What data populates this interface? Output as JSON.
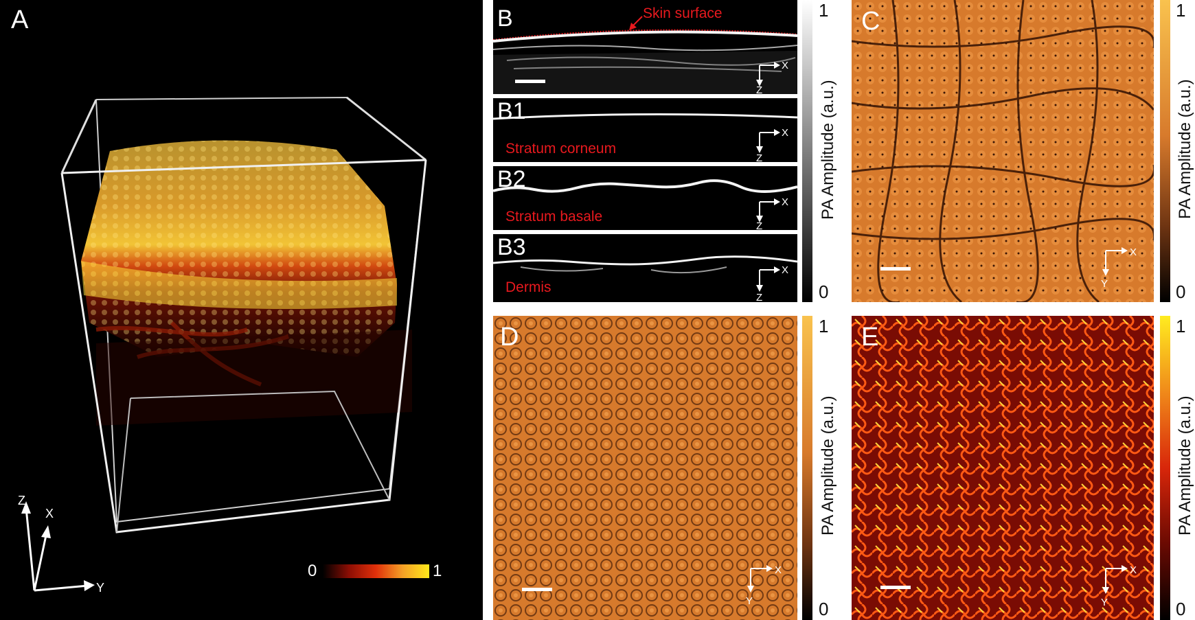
{
  "panels": {
    "A": {
      "label": "A",
      "colorbar_min": "0",
      "colorbar_max": "1",
      "axes": {
        "z": "Z",
        "x": "X",
        "y": "Y"
      }
    },
    "B": {
      "label": "B",
      "annotation": "Skin surface",
      "axes": {
        "x": "X",
        "z": "Z"
      }
    },
    "B1": {
      "label": "B1",
      "layer": "Stratum corneum",
      "axes": {
        "x": "X",
        "z": "Z"
      }
    },
    "B2": {
      "label": "B2",
      "layer": "Stratum basale",
      "axes": {
        "x": "X",
        "z": "Z"
      }
    },
    "B3": {
      "label": "B3",
      "layer": "Dermis",
      "axes": {
        "x": "X",
        "z": "Z"
      }
    },
    "C": {
      "label": "C",
      "axes": {
        "x": "X",
        "y": "Y"
      }
    },
    "D": {
      "label": "D",
      "axes": {
        "x": "X",
        "y": "Y"
      }
    },
    "E": {
      "label": "E",
      "axes": {
        "x": "X",
        "y": "Y"
      }
    }
  },
  "colorbars": {
    "gray": {
      "title": "PA Amplitude (a.u.)",
      "max": "1",
      "min": "0"
    },
    "C": {
      "title": "PA Amplitude (a.u.)",
      "max": "1",
      "min": "0"
    },
    "D": {
      "title": "PA Amplitude (a.u.)",
      "max": "1",
      "min": "0"
    },
    "E": {
      "title": "PA Amplitude (a.u.)",
      "max": "1",
      "min": "0"
    }
  },
  "colors": {
    "hot_low": "#000000",
    "hot_mid": "#d21a08",
    "hot_high": "#ffe81a",
    "copper_low": "#000000",
    "copper_mid": "#9a4e1c",
    "copper_high": "#f6a94e",
    "red_label": "#e8191e"
  }
}
